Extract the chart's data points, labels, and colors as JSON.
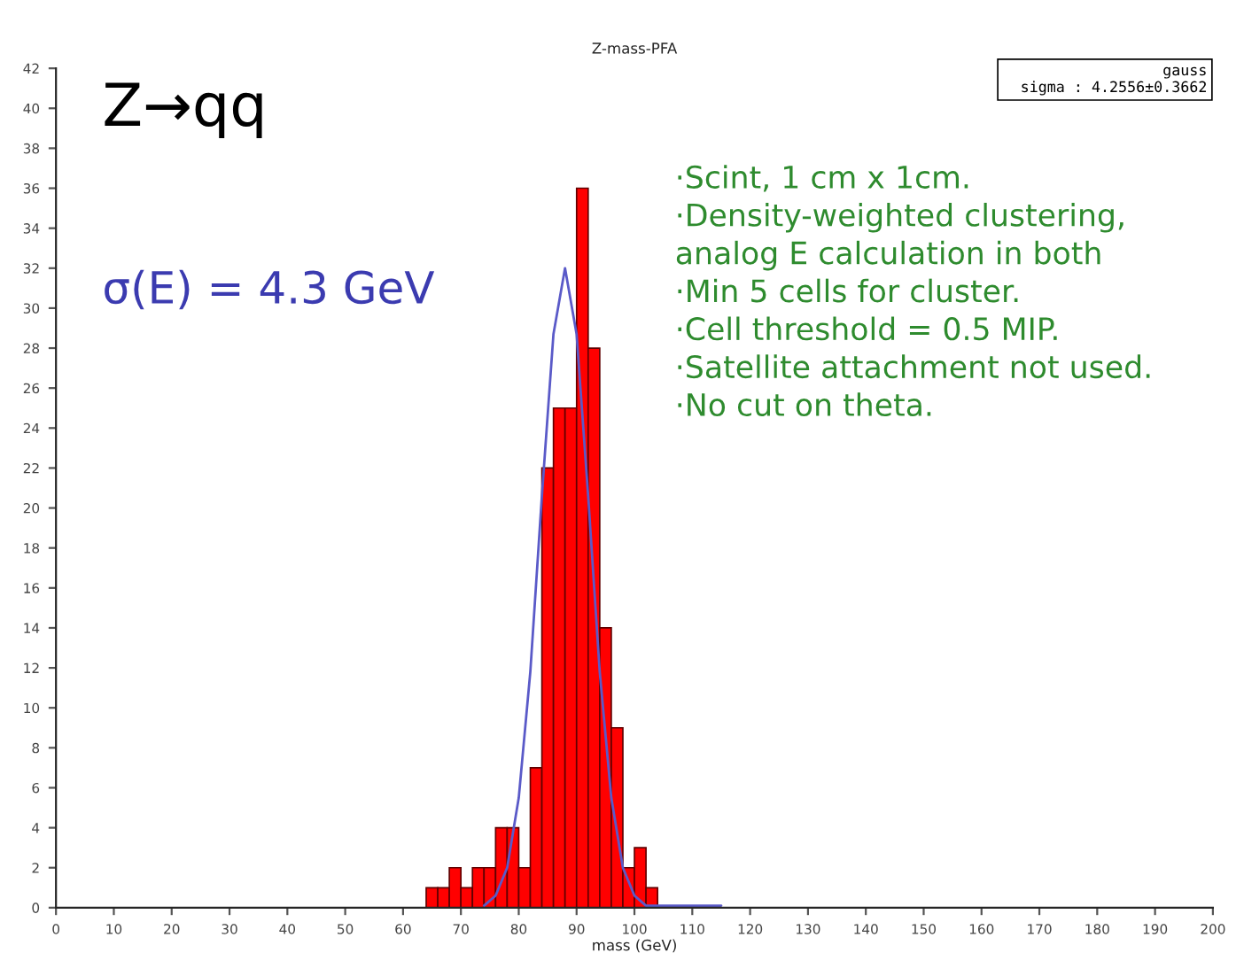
{
  "chart_data": {
    "type": "histogram",
    "title": "Z-mass-PFA",
    "xlabel": "mass (GeV)",
    "bins": [
      64,
      66,
      68,
      70,
      72,
      74,
      76,
      78,
      80,
      82,
      84,
      86,
      88,
      90,
      92,
      94,
      96,
      98,
      100,
      102,
      104
    ],
    "values": [
      1,
      1,
      2,
      1,
      2,
      2,
      4,
      4,
      2,
      7,
      22,
      25,
      25,
      36,
      28,
      14,
      9,
      2,
      3,
      1
    ],
    "color": "#ff0000",
    "series": [
      {
        "type": "line",
        "color": "#5a5ac8",
        "x": [
          74,
          76,
          78,
          80,
          82,
          84,
          86,
          88,
          90,
          92,
          94,
          96,
          98,
          100,
          102,
          104,
          106,
          110,
          115
        ],
        "values": [
          0.1,
          0.6,
          2.0,
          5.5,
          11.8,
          20.6,
          28.7,
          32,
          28.7,
          20.6,
          11.8,
          5.5,
          2.0,
          0.6,
          0.1,
          0.1,
          0.1,
          0.1,
          0.1
        ]
      }
    ],
    "xlim": [
      0,
      200
    ],
    "ylim": [
      0,
      42
    ],
    "xticks": [
      0,
      10,
      20,
      30,
      40,
      50,
      60,
      70,
      80,
      90,
      100,
      110,
      120,
      130,
      140,
      150,
      160,
      170,
      180,
      190,
      200
    ],
    "yticks": [
      0,
      2,
      4,
      6,
      8,
      10,
      12,
      14,
      16,
      18,
      20,
      22,
      24,
      26,
      28,
      30,
      32,
      34,
      36,
      38,
      40,
      42
    ],
    "grid": false,
    "annotations": [
      "Z→qq",
      "σ(E) = 4.3 GeV",
      "gauss\n  sigma : 4.2556±0.3662",
      "·Scint, 1 cm x 1cm.\n·Density-weighted clustering,\nanalog E calculation in both\n·Min 5 cells for cluster.\n·Cell threshold = 0.5 MIP.\n·Satellite attachment not used.\n·No cut on theta."
    ]
  }
}
